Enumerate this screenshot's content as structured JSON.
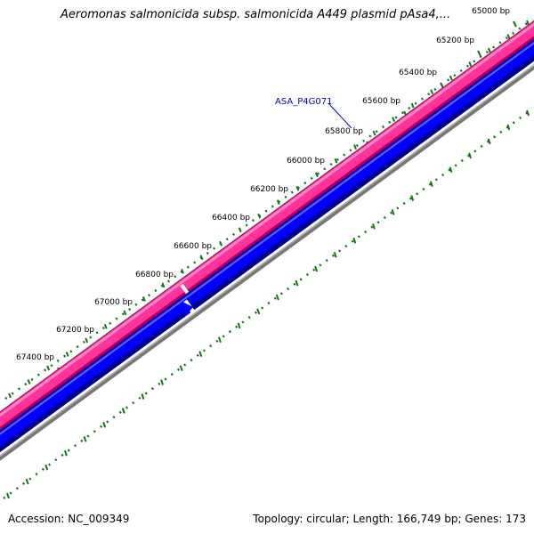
{
  "title": "Aeromonas salmonicida subsp. salmonicida A449 plasmid pAsa4,...",
  "footer": {
    "accession": "Accession: NC_009349",
    "summary": "Topology: circular; Length: 166,749 bp; Genes: 173"
  },
  "ticks": [
    {
      "label": "65000 bp"
    },
    {
      "label": "65200 bp"
    },
    {
      "label": "65400 bp"
    },
    {
      "label": "65600 bp"
    },
    {
      "label": "65800 bp"
    },
    {
      "label": "66000 bp"
    },
    {
      "label": "66200 bp"
    },
    {
      "label": "66400 bp"
    },
    {
      "label": "66600 bp"
    },
    {
      "label": "66800 bp"
    },
    {
      "label": "67000 bp"
    },
    {
      "label": "67200 bp"
    },
    {
      "label": "67400 bp"
    }
  ],
  "gene_label": "ASA_P4G071",
  "colors": {
    "forward_feature": "#ff3399",
    "reverse_feature": "#0000ff",
    "backbone": "#777777",
    "ticks": "#117711",
    "gene_label": "#0000cc"
  }
}
